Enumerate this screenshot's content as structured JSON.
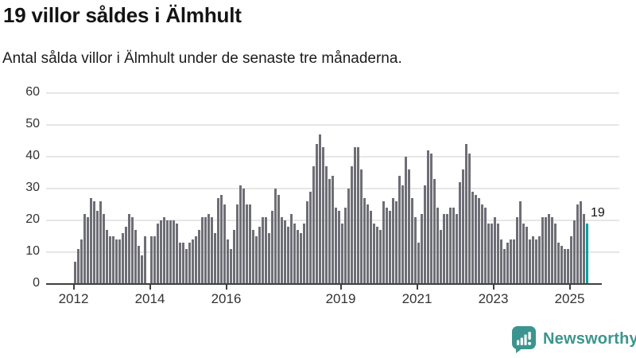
{
  "header": {
    "title": "19 villor såldes i Älmhult",
    "subtitle": "Antal sålda villor i Älmhult under de senaste tre månaderna."
  },
  "chart_data": {
    "type": "bar",
    "title": "19 villor såldes i Älmhult",
    "xlabel": "",
    "ylabel": "",
    "ylim": [
      0,
      60
    ],
    "grid": "horizontal",
    "y_ticks": [
      0,
      10,
      20,
      30,
      40,
      50,
      60
    ],
    "x_ticks": [
      {
        "year": 2012,
        "label": "2012"
      },
      {
        "year": 2014,
        "label": "2014"
      },
      {
        "year": 2016,
        "label": "2016"
      },
      {
        "year": 2019,
        "label": "2019"
      },
      {
        "year": 2021,
        "label": "2021"
      },
      {
        "year": 2023,
        "label": "2023"
      },
      {
        "year": 2025,
        "label": "2025"
      }
    ],
    "frequency": "monthly",
    "start_month": "2012-01",
    "end_month": "2025-06",
    "values": [
      7,
      11,
      14,
      22,
      21,
      27,
      26,
      23,
      26,
      22,
      17,
      15,
      15,
      14,
      14,
      16,
      18,
      22,
      21,
      17,
      12,
      9,
      15,
      0,
      15,
      15,
      19,
      20,
      21,
      20,
      20,
      20,
      19,
      13,
      13,
      11,
      13,
      14,
      15,
      17,
      21,
      21,
      22,
      21,
      16,
      27,
      28,
      25,
      14,
      11,
      17,
      25,
      31,
      30,
      25,
      25,
      17,
      15,
      18,
      21,
      21,
      16,
      23,
      30,
      28,
      21,
      20,
      18,
      22,
      19,
      17,
      16,
      19,
      26,
      29,
      37,
      44,
      47,
      43,
      37,
      33,
      34,
      24,
      23,
      19,
      24,
      30,
      37,
      43,
      43,
      36,
      27,
      25,
      23,
      19,
      18,
      17,
      26,
      24,
      23,
      27,
      26,
      34,
      31,
      40,
      36,
      27,
      21,
      13,
      22,
      31,
      42,
      41,
      33,
      24,
      17,
      22,
      22,
      24,
      24,
      22,
      32,
      36,
      44,
      41,
      29,
      28,
      27,
      25,
      24,
      19,
      19,
      21,
      19,
      14,
      11,
      13,
      14,
      14,
      21,
      26,
      19,
      18,
      14,
      15,
      14,
      15,
      21,
      21,
      22,
      21,
      19,
      13,
      12,
      11,
      11,
      15,
      20,
      25,
      26,
      22,
      19
    ],
    "highlight": {
      "index": 161,
      "value": 19,
      "label": "19"
    },
    "colors": {
      "bar": "#6e6e76",
      "highlight": "#00a29c",
      "gridline": "#e6e6e6",
      "axis": "#404040",
      "text": "#333333"
    }
  },
  "footer": {
    "brand": "Newsworthy",
    "brand_color": "#3b958e",
    "logo_icon": "newsworthy-chart-bubble-icon"
  }
}
